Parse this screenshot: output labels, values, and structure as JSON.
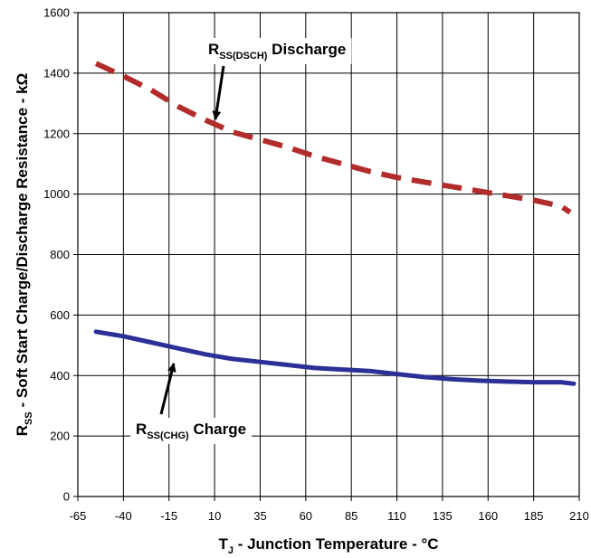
{
  "chart_data": {
    "type": "line",
    "xlabel": {
      "main": "T",
      "sub": "J",
      "rest": " - Junction Temperature - °C"
    },
    "ylabel": {
      "main": "R",
      "sub": "SS",
      "rest": " - Soft Start Charge/Discharge Resistance - kΩ"
    },
    "xlim": [
      -65,
      210
    ],
    "ylim": [
      0,
      1600
    ],
    "xticks": [
      -65,
      -40,
      -15,
      10,
      35,
      60,
      85,
      110,
      135,
      160,
      185,
      210
    ],
    "yticks": [
      0,
      200,
      400,
      600,
      800,
      1000,
      1200,
      1400,
      1600
    ],
    "grid": true,
    "series": [
      {
        "name": "Discharge",
        "color": "#b22c2c",
        "style": "dashed",
        "x": [
          -55,
          -40,
          -25,
          -10,
          5,
          20,
          35,
          50,
          65,
          80,
          95,
          110,
          125,
          140,
          155,
          170,
          185,
          200,
          205
        ],
        "y": [
          1432,
          1390,
          1345,
          1290,
          1245,
          1205,
          1180,
          1155,
          1125,
          1100,
          1075,
          1055,
          1040,
          1025,
          1010,
          995,
          980,
          960,
          940
        ]
      },
      {
        "name": "Charge",
        "color": "#2b2f96",
        "style": "solid",
        "x": [
          -55,
          -40,
          -25,
          -10,
          5,
          20,
          35,
          50,
          65,
          80,
          95,
          110,
          125,
          140,
          155,
          170,
          185,
          200,
          207
        ],
        "y": [
          545,
          530,
          510,
          490,
          470,
          455,
          445,
          435,
          425,
          420,
          415,
          405,
          395,
          388,
          383,
          380,
          378,
          378,
          373
        ]
      }
    ],
    "annotations": [
      {
        "series": "Discharge",
        "main": "R",
        "sub": "SS(DSCH)",
        "rest": " Discharge",
        "arrow_to": {
          "x": 5,
          "y": 1245
        }
      },
      {
        "series": "Charge",
        "main": "R",
        "sub": "SS(CHG)",
        "rest": " Charge",
        "arrow_to": {
          "x": -12,
          "y": 455
        }
      }
    ]
  }
}
